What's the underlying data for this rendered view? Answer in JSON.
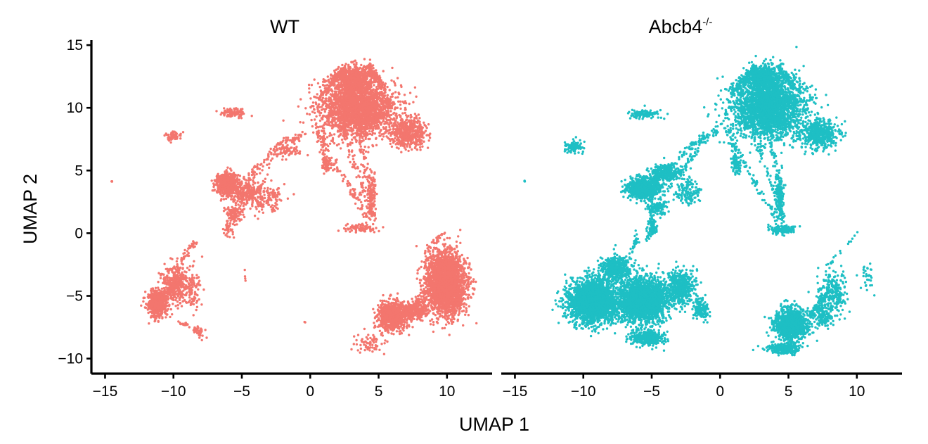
{
  "chart_data": {
    "type": "scatter",
    "xlabel": "UMAP 1",
    "ylabel": "UMAP 2",
    "xlim": [
      -16,
      13.3
    ],
    "ylim": [
      -11.2,
      15.4
    ],
    "xticks": [
      -15,
      -10,
      -5,
      0,
      5,
      10
    ],
    "yticks": [
      -10,
      -5,
      0,
      5,
      10,
      15
    ],
    "xtick_labels": [
      "−15",
      "−10",
      "−5",
      "0",
      "5",
      "10"
    ],
    "ytick_labels": [
      "−10",
      "−5",
      "0",
      "5",
      "10",
      "15"
    ],
    "grid": false,
    "legend": "none",
    "panels": [
      {
        "title": "WT",
        "title_superscript": "",
        "color": "#F3766E",
        "clusters": [
          {
            "cx": 3.5,
            "cy": 10.0,
            "sx": 2.4,
            "sy": 2.1,
            "n": 2600
          },
          {
            "cx": 3.2,
            "cy": 12.4,
            "sx": 1.1,
            "sy": 0.9,
            "n": 500
          },
          {
            "cx": 7.2,
            "cy": 8.0,
            "sx": 1.2,
            "sy": 1.0,
            "n": 500
          },
          {
            "cx": 9.9,
            "cy": -4.0,
            "sx": 1.3,
            "sy": 2.2,
            "n": 2600
          },
          {
            "cx": 6.0,
            "cy": -6.6,
            "sx": 1.0,
            "sy": 1.0,
            "n": 800
          },
          {
            "cx": 7.6,
            "cy": -6.2,
            "sx": 0.9,
            "sy": 0.6,
            "n": 250
          },
          {
            "cx": -11.2,
            "cy": -5.6,
            "sx": 0.6,
            "sy": 0.9,
            "n": 700
          },
          {
            "cx": -9.9,
            "cy": -4.0,
            "sx": 0.9,
            "sy": 1.3,
            "n": 400
          },
          {
            "cx": -8.6,
            "cy": -4.5,
            "sx": 0.6,
            "sy": 1.6,
            "n": 80
          },
          {
            "cx": -6.1,
            "cy": 3.9,
            "sx": 0.7,
            "sy": 0.8,
            "n": 700
          },
          {
            "cx": -4.6,
            "cy": 3.2,
            "sx": 0.9,
            "sy": 0.9,
            "n": 200
          },
          {
            "cx": -5.6,
            "cy": 1.6,
            "sx": 0.6,
            "sy": 0.6,
            "n": 120
          },
          {
            "cx": -3.2,
            "cy": 2.8,
            "sx": 1.1,
            "sy": 1.2,
            "n": 140
          },
          {
            "cx": -6.0,
            "cy": 0.3,
            "sx": 0.3,
            "sy": 0.5,
            "n": 35
          },
          {
            "cx": -5.7,
            "cy": 9.6,
            "sx": 0.9,
            "sy": 0.3,
            "n": 90
          },
          {
            "cx": -10.0,
            "cy": 7.7,
            "sx": 0.5,
            "sy": 0.3,
            "n": 60
          },
          {
            "cx": 3.7,
            "cy": 0.4,
            "sx": 1.2,
            "sy": 0.3,
            "n": 90
          },
          {
            "cx": 4.5,
            "cy": 3.0,
            "sx": 0.25,
            "sy": 1.6,
            "n": 110
          },
          {
            "cx": 1.2,
            "cy": 5.5,
            "sx": 0.35,
            "sy": 0.6,
            "n": 60
          },
          {
            "cx": -1.5,
            "cy": 6.6,
            "sx": 1.0,
            "sy": 0.5,
            "n": 60
          },
          {
            "cx": 4.4,
            "cy": -8.7,
            "sx": 1.1,
            "sy": 0.7,
            "n": 70
          },
          {
            "cx": -8.0,
            "cy": -7.9,
            "sx": 0.4,
            "sy": 0.5,
            "n": 25
          },
          {
            "cx": -14.5,
            "cy": 4.15,
            "sx": 0.03,
            "sy": 0.03,
            "n": 3
          },
          {
            "cx": -0.4,
            "cy": -7.1,
            "sx": 0.03,
            "sy": 0.03,
            "n": 2
          },
          {
            "cx": -4.8,
            "cy": -3.4,
            "sx": 0.1,
            "sy": 0.6,
            "n": 4
          }
        ],
        "links": [
          {
            "x1": 0.3,
            "y1": 8.5,
            "x2": 4.3,
            "y2": 1.0,
            "n": 90
          },
          {
            "x1": 2.4,
            "y1": 8.2,
            "x2": 4.5,
            "y2": 1.5,
            "n": 60
          },
          {
            "x1": 3.6,
            "y1": 8.2,
            "x2": 4.6,
            "y2": 1.0,
            "n": 70
          },
          {
            "x1": 0.8,
            "y1": 8.1,
            "x2": 1.2,
            "y2": 4.8,
            "n": 40
          },
          {
            "x1": -4.8,
            "y1": 4.2,
            "x2": -1.7,
            "y2": 7.6,
            "n": 60
          },
          {
            "x1": -5.6,
            "y1": 2.5,
            "x2": -1.2,
            "y2": 7.8,
            "n": 50
          },
          {
            "x1": -1.5,
            "y1": 7.2,
            "x2": -0.5,
            "y2": 8.0,
            "n": 25
          },
          {
            "x1": 8.3,
            "y1": -1.7,
            "x2": 9.8,
            "y2": 0.2,
            "n": 25
          },
          {
            "x1": 7.2,
            "y1": -6.5,
            "x2": 8.6,
            "y2": -4.5,
            "n": 70
          },
          {
            "x1": -9.6,
            "y1": -2.4,
            "x2": -8.4,
            "y2": -0.6,
            "n": 40
          },
          {
            "x1": -9.8,
            "y1": -7.0,
            "x2": -8.0,
            "y2": -7.8,
            "n": 25
          },
          {
            "x1": 0.8,
            "y1": 11.0,
            "x2": 2.6,
            "y2": 13.3,
            "n": 120
          },
          {
            "x1": 4.3,
            "y1": 13.3,
            "x2": 5.3,
            "y2": 11.6,
            "n": 100
          }
        ]
      },
      {
        "title": "Abcb4",
        "title_superscript": "-/-",
        "color": "#1EBFC4",
        "clusters": [
          {
            "cx": 3.5,
            "cy": 10.0,
            "sx": 2.4,
            "sy": 2.1,
            "n": 2600
          },
          {
            "cx": 3.2,
            "cy": 12.4,
            "sx": 1.1,
            "sy": 0.9,
            "n": 500
          },
          {
            "cx": 7.3,
            "cy": 7.9,
            "sx": 1.2,
            "sy": 1.0,
            "n": 500
          },
          {
            "cx": -9.3,
            "cy": -5.4,
            "sx": 1.6,
            "sy": 1.5,
            "n": 2200
          },
          {
            "cx": -5.7,
            "cy": -5.4,
            "sx": 1.7,
            "sy": 1.6,
            "n": 2200
          },
          {
            "cx": -7.6,
            "cy": -2.8,
            "sx": 0.9,
            "sy": 0.9,
            "n": 500
          },
          {
            "cx": -5.3,
            "cy": -8.4,
            "sx": 1.1,
            "sy": 0.5,
            "n": 400
          },
          {
            "cx": -2.9,
            "cy": -4.3,
            "sx": 1.0,
            "sy": 1.2,
            "n": 500
          },
          {
            "cx": -1.4,
            "cy": -6.0,
            "sx": 0.5,
            "sy": 0.7,
            "n": 150
          },
          {
            "cx": 5.2,
            "cy": -7.3,
            "sx": 1.1,
            "sy": 1.1,
            "n": 1000
          },
          {
            "cx": 4.7,
            "cy": -9.2,
            "sx": 1.1,
            "sy": 0.4,
            "n": 250
          },
          {
            "cx": 8.2,
            "cy": -4.7,
            "sx": 0.9,
            "sy": 1.6,
            "n": 260
          },
          {
            "cx": 7.6,
            "cy": -6.7,
            "sx": 0.6,
            "sy": 0.7,
            "n": 120
          },
          {
            "cx": -5.6,
            "cy": 3.6,
            "sx": 1.0,
            "sy": 0.7,
            "n": 900
          },
          {
            "cx": -4.0,
            "cy": 4.8,
            "sx": 1.0,
            "sy": 0.6,
            "n": 300
          },
          {
            "cx": -4.6,
            "cy": 2.0,
            "sx": 0.7,
            "sy": 0.5,
            "n": 120
          },
          {
            "cx": -2.3,
            "cy": 3.3,
            "sx": 0.9,
            "sy": 1.0,
            "n": 140
          },
          {
            "cx": -5.5,
            "cy": 9.5,
            "sx": 1.0,
            "sy": 0.3,
            "n": 110
          },
          {
            "cx": -10.7,
            "cy": 6.9,
            "sx": 0.6,
            "sy": 0.4,
            "n": 100
          },
          {
            "cx": 4.5,
            "cy": 0.3,
            "sx": 0.8,
            "sy": 0.3,
            "n": 120
          },
          {
            "cx": 4.4,
            "cy": 3.0,
            "sx": 0.25,
            "sy": 1.6,
            "n": 130
          },
          {
            "cx": 1.2,
            "cy": 5.4,
            "sx": 0.3,
            "sy": 0.6,
            "n": 60
          },
          {
            "cx": -4.9,
            "cy": 0.4,
            "sx": 0.3,
            "sy": 0.6,
            "n": 50
          },
          {
            "cx": -14.3,
            "cy": 4.15,
            "sx": 0.03,
            "sy": 0.03,
            "n": 3
          },
          {
            "cx": 10.8,
            "cy": -3.5,
            "sx": 0.6,
            "sy": 1.3,
            "n": 30
          }
        ],
        "links": [
          {
            "x1": 0.2,
            "y1": 8.5,
            "x2": 4.2,
            "y2": 1.0,
            "n": 90
          },
          {
            "x1": 2.4,
            "y1": 8.2,
            "x2": 4.5,
            "y2": 1.5,
            "n": 60
          },
          {
            "x1": 3.6,
            "y1": 8.2,
            "x2": 4.6,
            "y2": 1.0,
            "n": 70
          },
          {
            "x1": 0.8,
            "y1": 8.1,
            "x2": 1.2,
            "y2": 4.8,
            "n": 40
          },
          {
            "x1": -4.0,
            "y1": 5.0,
            "x2": -1.2,
            "y2": 7.8,
            "n": 70
          },
          {
            "x1": -4.2,
            "y1": 3.0,
            "x2": -1.0,
            "y2": 7.6,
            "n": 60
          },
          {
            "x1": -1.5,
            "y1": 7.2,
            "x2": 0.0,
            "y2": 8.4,
            "n": 30
          },
          {
            "x1": -5.3,
            "y1": -0.5,
            "x2": -5.0,
            "y2": 1.5,
            "n": 40
          },
          {
            "x1": -6.4,
            "y1": -1.6,
            "x2": -6.0,
            "y2": 0.0,
            "n": 25
          },
          {
            "x1": 6.6,
            "y1": -6.6,
            "x2": 7.6,
            "y2": -5.0,
            "n": 80
          },
          {
            "x1": 0.8,
            "y1": 11.0,
            "x2": 2.6,
            "y2": 13.3,
            "n": 120
          },
          {
            "x1": 4.3,
            "y1": 13.3,
            "x2": 5.3,
            "y2": 11.6,
            "n": 100
          },
          {
            "x1": 8.0,
            "y1": -2.5,
            "x2": 10.0,
            "y2": 0.0,
            "n": 15
          }
        ]
      }
    ]
  }
}
